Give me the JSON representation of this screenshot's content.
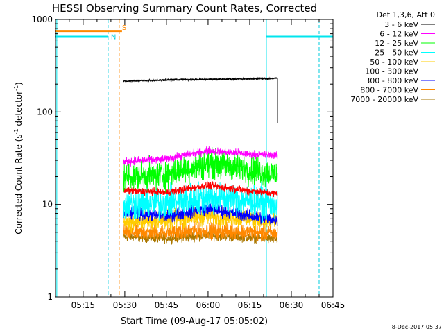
{
  "chart_data": {
    "type": "line",
    "title": "HESSI Observing Summary Count Rates, Corrected",
    "xlabel": "Start Time (09-Aug-17 05:05:02)",
    "ylabel_main": "Corrected Count Rate (s",
    "ylabel_exp1": "-1",
    "ylabel_mid": " detector",
    "ylabel_exp2": "-1",
    "ylabel_end": ")",
    "yscale": "log",
    "xlim": [
      "05:05:02",
      "06:45:00"
    ],
    "ylim": [
      1,
      1000
    ],
    "x_ticks": [
      "05:15",
      "05:30",
      "05:45",
      "06:00",
      "06:15",
      "06:30",
      "06:45"
    ],
    "y_ticks": [
      "1",
      "10",
      "100",
      "1000"
    ],
    "legend": {
      "position": "right",
      "header": "Det 1,3,6, Att 0",
      "entries": [
        {
          "label": "3 - 6 keV",
          "color": "#000000"
        },
        {
          "label": "6 - 12 keV",
          "color": "#ff00ff"
        },
        {
          "label": "12 - 25 keV",
          "color": "#00ff00"
        },
        {
          "label": "25 - 50 keV",
          "color": "#00ffff"
        },
        {
          "label": "50 - 100 keV",
          "color": "#ffcc00"
        },
        {
          "label": "100 - 300 keV",
          "color": "#ff0000"
        },
        {
          "label": "300 - 800 keV",
          "color": "#0000ff"
        },
        {
          "label": "800 - 7000 keV",
          "color": "#ff8800"
        },
        {
          "label": "7000 - 20000 keV",
          "color": "#aa7700"
        }
      ]
    },
    "data_window": [
      "05:29:30",
      "06:25:00"
    ],
    "series": [
      {
        "name": "3 - 6 keV",
        "color": "#000000",
        "x": [
          "05:30",
          "05:45",
          "06:00",
          "06:15",
          "06:25"
        ],
        "y": [
          215,
          222,
          225,
          228,
          230
        ],
        "spread": 0.03
      },
      {
        "name": "6 - 12 keV",
        "color": "#ff00ff",
        "x": [
          "05:30",
          "05:45",
          "06:00",
          "06:15",
          "06:25"
        ],
        "y": [
          29,
          31,
          38,
          35,
          34
        ],
        "spread": 0.12
      },
      {
        "name": "12 - 25 keV",
        "color": "#00ff00",
        "x": [
          "05:30",
          "05:45",
          "06:00",
          "06:15",
          "06:25"
        ],
        "y": [
          20,
          21,
          28,
          24,
          21
        ],
        "spread": 0.45
      },
      {
        "name": "25 - 50 keV",
        "color": "#00ffff",
        "x": [
          "05:30",
          "05:45",
          "06:00",
          "06:15",
          "06:25"
        ],
        "y": [
          10,
          10.5,
          12,
          11,
          10
        ],
        "spread": 0.5
      },
      {
        "name": "50 - 100 keV",
        "color": "#ffcc00",
        "x": [
          "05:30",
          "05:45",
          "06:00",
          "06:15",
          "06:25"
        ],
        "y": [
          6.5,
          6.8,
          7.5,
          7,
          6.5
        ],
        "spread": 0.3
      },
      {
        "name": "100 - 300 keV",
        "color": "#ff0000",
        "x": [
          "05:30",
          "05:45",
          "06:00",
          "06:15",
          "06:25"
        ],
        "y": [
          14,
          13.5,
          16,
          14,
          13
        ],
        "spread": 0.12
      },
      {
        "name": "300 - 800 keV",
        "color": "#0000ff",
        "x": [
          "05:30",
          "05:45",
          "06:00",
          "06:15",
          "06:25"
        ],
        "y": [
          8,
          7.5,
          9,
          7.5,
          6.8
        ],
        "spread": 0.2
      },
      {
        "name": "800 - 7000 keV",
        "color": "#ff8800",
        "x": [
          "05:30",
          "05:45",
          "06:00",
          "06:15",
          "06:25"
        ],
        "y": [
          5,
          5,
          5.2,
          5,
          4.8
        ],
        "spread": 0.25
      },
      {
        "name": "7000 - 20000 keV",
        "color": "#aa7700",
        "x": [
          "05:30",
          "05:45",
          "06:00",
          "06:15",
          "06:25"
        ],
        "y": [
          4.5,
          4.3,
          4.6,
          4.4,
          4.2
        ],
        "spread": 0.15
      }
    ],
    "annotations": [
      {
        "text": "S",
        "color": "#ff8800",
        "x": "05:28"
      },
      {
        "text": "N",
        "color": "#00ccdd",
        "x": "05:24"
      }
    ],
    "orbit_bars": [
      {
        "name": "SAA",
        "color": "#ff8800",
        "x_start": "05:05:02",
        "x_end": "05:29:00",
        "y": 750
      },
      {
        "name": "Night",
        "color": "#00e5ee",
        "x_start": "05:05:02",
        "x_end": "05:24:00",
        "y": 650
      },
      {
        "name": "Night",
        "color": "#00e5ee",
        "x_start": "06:21:00",
        "x_end": "06:45:00",
        "y": 650
      }
    ],
    "vlines": [
      {
        "x": "05:05:30",
        "color": "#00e5ee",
        "style": "solid"
      },
      {
        "x": "05:24:00",
        "color": "#00ccdd",
        "style": "dashed"
      },
      {
        "x": "05:28:00",
        "color": "#ff8800",
        "style": "dashed"
      },
      {
        "x": "06:21:00",
        "color": "#00e5ee",
        "style": "solid"
      },
      {
        "x": "06:40:00",
        "color": "#00ccdd",
        "style": "dashed"
      }
    ]
  },
  "footer": {
    "timestamp": "8-Dec-2017 05:37"
  }
}
